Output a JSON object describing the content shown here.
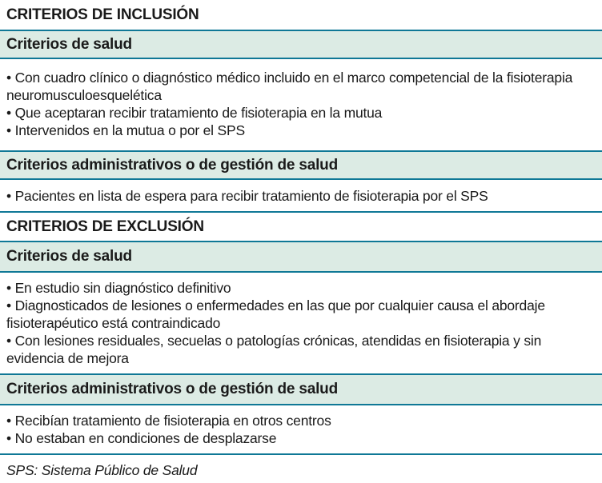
{
  "colors": {
    "bar_fill": "#dcebe4",
    "bar_border": "#0f7896",
    "text": "#1a1a1a",
    "background": "#ffffff"
  },
  "sections": {
    "inclusion_header": "CRITERIOS DE INCLUSIÓN",
    "inclusion_salud_title": "Criterios de salud",
    "inclusion_salud_items": [
      "• Con cuadro clínico o diagnóstico médico incluido en el marco competencial de la fisioterapia neuromusculoesquelética",
      "• Que aceptaran recibir tratamiento de fisioterapia en la mutua",
      "• Intervenidos en la mutua o por el SPS"
    ],
    "inclusion_admin_title": "Criterios administrativos o de gestión de salud",
    "inclusion_admin_items": [
      "• Pacientes en lista de espera para recibir tratamiento de fisioterapia por el SPS"
    ],
    "exclusion_header": "CRITERIOS DE EXCLUSIÓN",
    "exclusion_salud_title": "Criterios de salud",
    "exclusion_salud_items": [
      "• En estudio sin diagnóstico definitivo",
      "• Diagnosticados de lesiones o enfermedades en las que por cualquier causa el abordaje fisioterapéutico está contraindicado",
      "• Con lesiones residuales, secuelas o patologías crónicas, atendidas en fisioterapia y sin evidencia de mejora"
    ],
    "exclusion_admin_title": "Criterios administrativos o de gestión de salud",
    "exclusion_admin_items": [
      "• Recibían tratamiento de fisioterapia en otros centros",
      "• No estaban en condiciones de desplazarse"
    ]
  },
  "footnote": "SPS: Sistema Público de Salud"
}
